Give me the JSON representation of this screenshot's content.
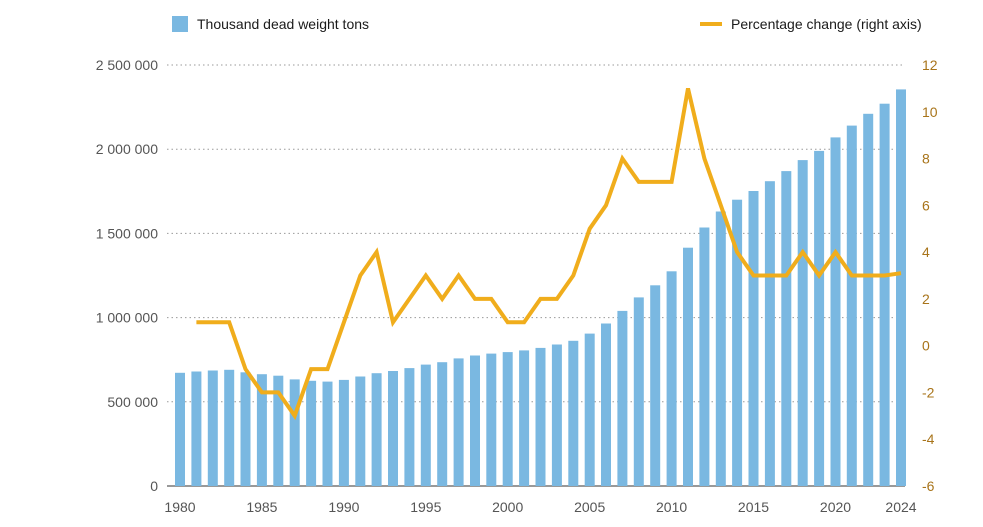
{
  "chart_data": {
    "type": "bar+line",
    "title": "",
    "xlabel": "",
    "ylabel": "",
    "y2label": "",
    "legend": {
      "position": "top",
      "items": [
        {
          "label": "Thousand dead weight tons",
          "kind": "bar"
        },
        {
          "label": "Percentage change (right axis)",
          "kind": "line"
        }
      ]
    },
    "x": [
      1980,
      1981,
      1982,
      1983,
      1984,
      1985,
      1986,
      1987,
      1988,
      1989,
      1990,
      1991,
      1992,
      1993,
      1994,
      1995,
      1996,
      1997,
      1998,
      1999,
      2000,
      2001,
      2002,
      2003,
      2004,
      2005,
      2006,
      2007,
      2008,
      2009,
      2010,
      2011,
      2012,
      2013,
      2014,
      2015,
      2016,
      2017,
      2018,
      2019,
      2020,
      2021,
      2022,
      2023,
      2024
    ],
    "x_tick_labels": [
      "1980",
      "1985",
      "1990",
      "1995",
      "2000",
      "2005",
      "2010",
      "2015",
      "2020",
      "2024"
    ],
    "y_left_tick_labels": [
      "0",
      "500 000",
      "1 000 000",
      "1 500 000",
      "2 000 000",
      "2 500 000"
    ],
    "y_right_tick_labels": [
      "-6",
      "-4",
      "-2",
      "0",
      "2",
      "4",
      "6",
      "8",
      "10",
      "12"
    ],
    "ylim_left": [
      0,
      2500000
    ],
    "ylim_right": [
      -6,
      12
    ],
    "grid": "horizontal dotted",
    "series": [
      {
        "name": "Thousand dead weight tons",
        "type": "bar",
        "axis": "left",
        "color": "#7ab8e1",
        "values": [
          672000,
          680000,
          686000,
          690000,
          675000,
          664000,
          655000,
          633000,
          625000,
          620000,
          630000,
          650000,
          670000,
          683000,
          700000,
          721000,
          735000,
          758000,
          775000,
          786000,
          795000,
          805000,
          820000,
          840000,
          862000,
          905000,
          965000,
          1040000,
          1120000,
          1192000,
          1275000,
          1415000,
          1535000,
          1630000,
          1700000,
          1752000,
          1810000,
          1870000,
          1935000,
          1990000,
          2070000,
          2140000,
          2210000,
          2270000,
          2355000
        ]
      },
      {
        "name": "Percentage change (right axis)",
        "type": "line",
        "axis": "right",
        "color": "#f0ad1c",
        "x": [
          1981,
          1982,
          1983,
          1984,
          1985,
          1986,
          1987,
          1988,
          1989,
          1990,
          1991,
          1992,
          1993,
          1994,
          1995,
          1996,
          1997,
          1998,
          1999,
          2000,
          2001,
          2002,
          2003,
          2004,
          2005,
          2006,
          2007,
          2008,
          2009,
          2010,
          2011,
          2012,
          2013,
          2014,
          2015,
          2016,
          2017,
          2018,
          2019,
          2020,
          2021,
          2022,
          2023,
          2024
        ],
        "values": [
          1,
          1,
          1,
          -1,
          -2,
          -2,
          -3,
          -1,
          -1,
          1,
          3,
          4,
          1,
          2,
          3,
          2,
          3,
          2,
          2,
          1,
          1,
          2,
          2,
          3,
          5,
          6,
          8,
          7,
          7,
          7,
          11,
          8,
          6,
          4,
          3,
          3,
          3,
          4,
          3,
          4,
          3,
          3,
          3,
          3.1
        ]
      }
    ]
  },
  "colors": {
    "bar": "#7ab8e1",
    "line": "#f0ad1c",
    "left_axis_text": "#555555",
    "right_axis_text": "#a8741a",
    "grid": "#9a9a9a"
  }
}
